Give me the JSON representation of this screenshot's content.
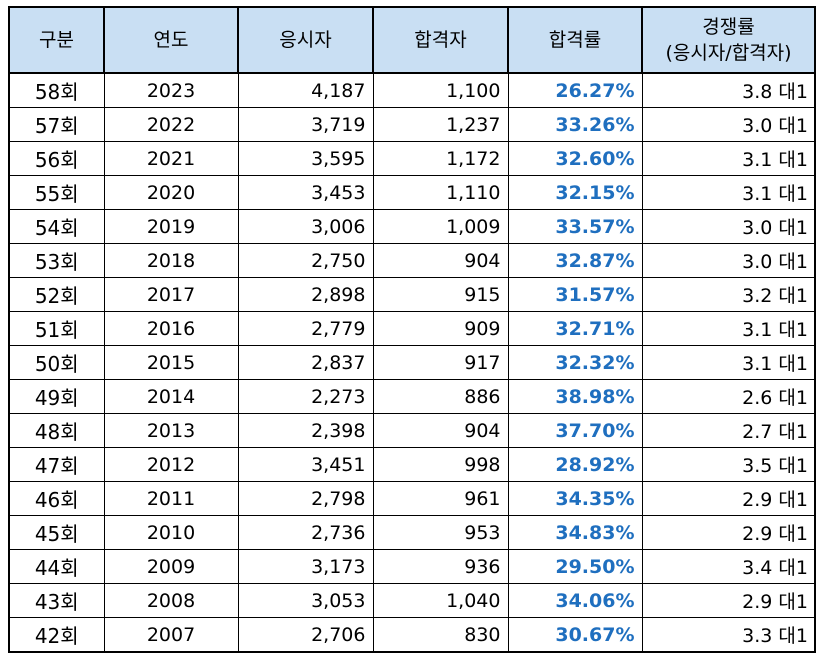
{
  "headers": {
    "round": "구분",
    "year": "연도",
    "applicants": "응시자",
    "passed": "합격자",
    "pass_rate": "합격률",
    "competition_line1": "경쟁률",
    "competition_line2": "(응시자/합격자)"
  },
  "rows": [
    {
      "round": "58회",
      "year": "2023",
      "applicants": "4,187",
      "passed": "1,100",
      "pass_rate": "26.27%",
      "competition": "3.8 대1"
    },
    {
      "round": "57회",
      "year": "2022",
      "applicants": "3,719",
      "passed": "1,237",
      "pass_rate": "33.26%",
      "competition": "3.0 대1"
    },
    {
      "round": "56회",
      "year": "2021",
      "applicants": "3,595",
      "passed": "1,172",
      "pass_rate": "32.60%",
      "competition": "3.1 대1"
    },
    {
      "round": "55회",
      "year": "2020",
      "applicants": "3,453",
      "passed": "1,110",
      "pass_rate": "32.15%",
      "competition": "3.1 대1"
    },
    {
      "round": "54회",
      "year": "2019",
      "applicants": "3,006",
      "passed": "1,009",
      "pass_rate": "33.57%",
      "competition": "3.0 대1"
    },
    {
      "round": "53회",
      "year": "2018",
      "applicants": "2,750",
      "passed": "904",
      "pass_rate": "32.87%",
      "competition": "3.0 대1"
    },
    {
      "round": "52회",
      "year": "2017",
      "applicants": "2,898",
      "passed": "915",
      "pass_rate": "31.57%",
      "competition": "3.2 대1"
    },
    {
      "round": "51회",
      "year": "2016",
      "applicants": "2,779",
      "passed": "909",
      "pass_rate": "32.71%",
      "competition": "3.1 대1"
    },
    {
      "round": "50회",
      "year": "2015",
      "applicants": "2,837",
      "passed": "917",
      "pass_rate": "32.32%",
      "competition": "3.1 대1"
    },
    {
      "round": "49회",
      "year": "2014",
      "applicants": "2,273",
      "passed": "886",
      "pass_rate": "38.98%",
      "competition": "2.6 대1"
    },
    {
      "round": "48회",
      "year": "2013",
      "applicants": "2,398",
      "passed": "904",
      "pass_rate": "37.70%",
      "competition": "2.7 대1"
    },
    {
      "round": "47회",
      "year": "2012",
      "applicants": "3,451",
      "passed": "998",
      "pass_rate": "28.92%",
      "competition": "3.5 대1"
    },
    {
      "round": "46회",
      "year": "2011",
      "applicants": "2,798",
      "passed": "961",
      "pass_rate": "34.35%",
      "competition": "2.9 대1"
    },
    {
      "round": "45회",
      "year": "2010",
      "applicants": "2,736",
      "passed": "953",
      "pass_rate": "34.83%",
      "competition": "2.9 대1"
    },
    {
      "round": "44회",
      "year": "2009",
      "applicants": "3,173",
      "passed": "936",
      "pass_rate": "29.50%",
      "competition": "3.4 대1"
    },
    {
      "round": "43회",
      "year": "2008",
      "applicants": "3,053",
      "passed": "1,040",
      "pass_rate": "34.06%",
      "competition": "2.9 대1"
    },
    {
      "round": "42회",
      "year": "2007",
      "applicants": "2,706",
      "passed": "830",
      "pass_rate": "30.67%",
      "competition": "3.3 대1"
    }
  ],
  "colors": {
    "header_background": "#c9dff3",
    "pass_rate_text": "#1f6fbf",
    "border": "#000000"
  }
}
